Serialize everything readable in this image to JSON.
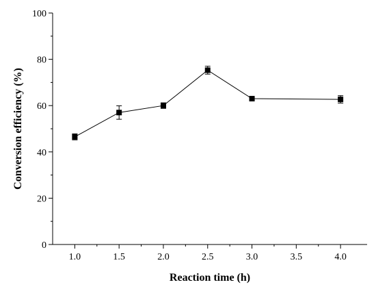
{
  "chart_data": {
    "type": "line",
    "title": "",
    "xlabel": "Reaction time (h)",
    "ylabel": "Conversion efficiency (%)",
    "xlim": [
      0.75,
      4.3
    ],
    "ylim": [
      0,
      100
    ],
    "x_ticks": [
      1.0,
      1.5,
      2.0,
      2.5,
      3.0,
      3.5,
      4.0
    ],
    "x_tick_labels": [
      "1.0",
      "1.5",
      "2.0",
      "2.5",
      "3.0",
      "3.5",
      "4.0"
    ],
    "y_ticks": [
      0,
      20,
      40,
      60,
      80,
      100
    ],
    "y_tick_labels": [
      "0",
      "20",
      "40",
      "60",
      "80",
      "100"
    ],
    "grid": false,
    "legend": "none",
    "marker": "square",
    "color": "#000000",
    "series": [
      {
        "x": [
          1.0,
          1.5,
          2.0,
          2.5,
          3.0,
          4.0
        ],
        "y": [
          46.5,
          57.0,
          60.0,
          75.3,
          63.0,
          62.7
        ],
        "error": [
          1.3,
          2.9,
          1.2,
          1.7,
          0.5,
          1.6
        ]
      }
    ]
  }
}
